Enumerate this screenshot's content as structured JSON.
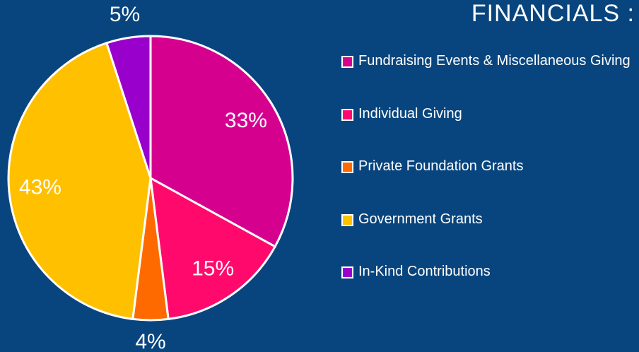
{
  "chart_data": {
    "type": "pie",
    "title": "FINANCIALS :",
    "categories": [
      "Fundraising Events & Miscellaneous Giving",
      "Individual Giving",
      "Private Foundation Grants",
      "Government Grants",
      "In-Kind Contributions"
    ],
    "values": [
      33,
      15,
      4,
      43,
      5
    ],
    "value_labels": [
      "33%",
      "15%",
      "4%",
      "43%",
      "5%"
    ],
    "colors": [
      "#d6008f",
      "#ff0a6c",
      "#ff6a00",
      "#ffc000",
      "#9a00cc"
    ]
  }
}
